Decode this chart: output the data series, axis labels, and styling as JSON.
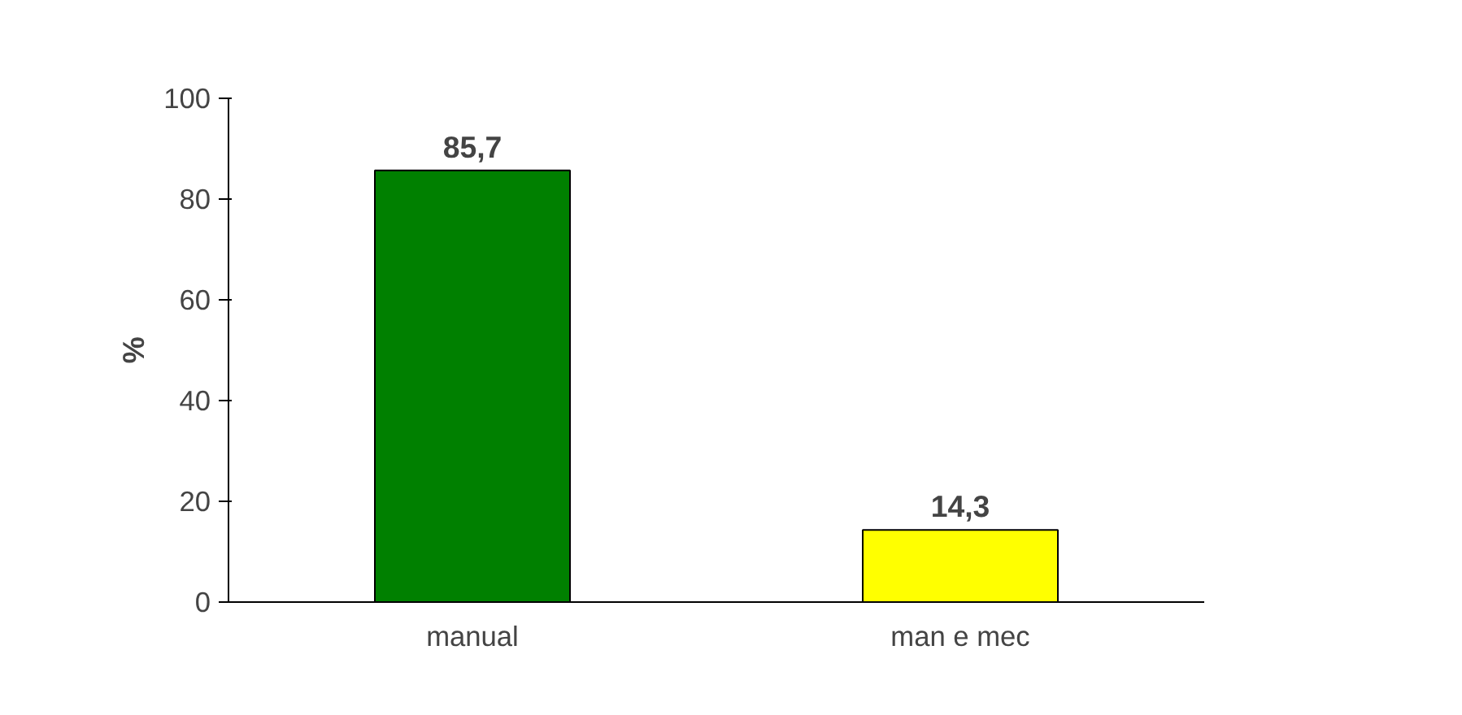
{
  "chart_data": {
    "type": "bar",
    "categories": [
      "manual",
      "man e mec"
    ],
    "values": [
      85.7,
      14.3
    ],
    "colors": [
      "#008000",
      "#ffff00"
    ],
    "value_labels": [
      "85,7",
      "14,3"
    ],
    "ylabel": "%",
    "ylim": [
      0,
      100
    ],
    "yticks": [
      0,
      20,
      40,
      60,
      80,
      100
    ],
    "grid": false
  }
}
